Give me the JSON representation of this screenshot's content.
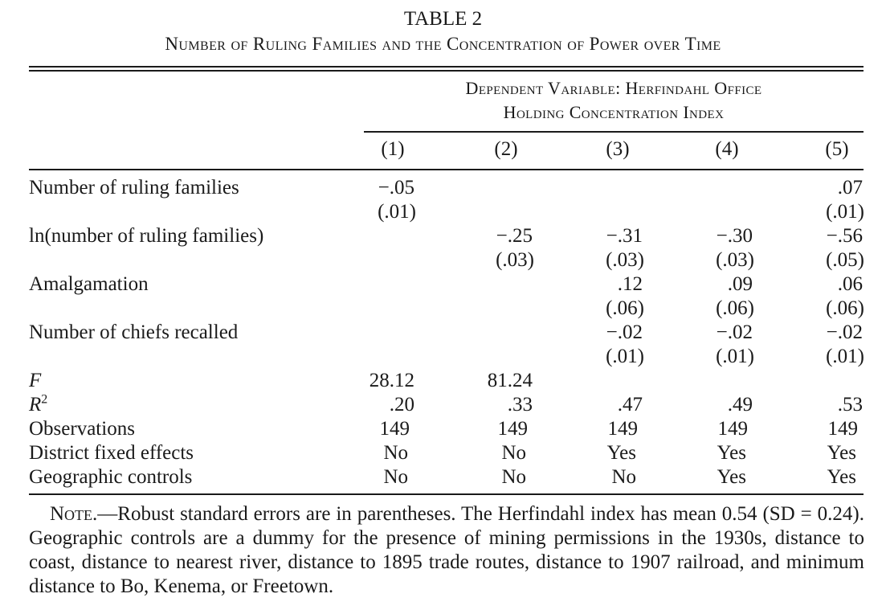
{
  "table": {
    "number": "TABLE 2",
    "title": "Number of Ruling Families and the Concentration of Power over Time",
    "dependent_variable_line1": "Dependent Variable: Herfindahl Office",
    "dependent_variable_line2": "Holding Concentration Index",
    "columns": [
      "(1)",
      "(2)",
      "(3)",
      "(4)",
      "(5)"
    ],
    "rows": [
      {
        "label": "Number of ruling families",
        "coef": [
          "−.05",
          "",
          "",
          "",
          ".07"
        ],
        "se": [
          "(.01)",
          "",
          "",
          "",
          "(.01)"
        ]
      },
      {
        "label": "ln(number of ruling families)",
        "coef": [
          "",
          "−.25",
          "−.31",
          "−.30",
          "−.56"
        ],
        "se": [
          "",
          "(.03)",
          "(.03)",
          "(.03)",
          "(.05)"
        ]
      },
      {
        "label": "Amalgamation",
        "coef": [
          "",
          "",
          ".12",
          ".09",
          ".06"
        ],
        "se": [
          "",
          "",
          "(.06)",
          "(.06)",
          "(.06)"
        ]
      },
      {
        "label": "Number of chiefs recalled",
        "coef": [
          "",
          "",
          "−.02",
          "−.02",
          "−.02"
        ],
        "se": [
          "",
          "",
          "(.01)",
          "(.01)",
          "(.01)"
        ]
      }
    ],
    "stats": {
      "f_label": "F",
      "f_values": [
        "28.12",
        "81.24",
        "",
        "",
        ""
      ],
      "r2_label": "R",
      "r2_sup": "2",
      "r2_values": [
        ".20",
        ".33",
        ".47",
        ".49",
        ".53"
      ],
      "obs_label": "Observations",
      "obs_values": [
        "149",
        "149",
        "149",
        "149",
        "149"
      ],
      "dfe_label": "District fixed effects",
      "dfe_values": [
        "No",
        "No",
        "Yes",
        "Yes",
        "Yes"
      ],
      "geo_label": "Geographic controls",
      "geo_values": [
        "No",
        "No",
        "No",
        "Yes",
        "Yes"
      ]
    },
    "note_head": "Note.",
    "note_text": "—Robust standard errors are in parentheses. The Herfindahl index has mean 0.54 (SD = 0.24). Geographic controls are a dummy for the presence of mining permissions in the 1930s, distance to coast, distance to nearest river, distance to 1895 trade routes, distance to 1907 railroad, and minimum distance to Bo, Kenema, or Freetown."
  }
}
